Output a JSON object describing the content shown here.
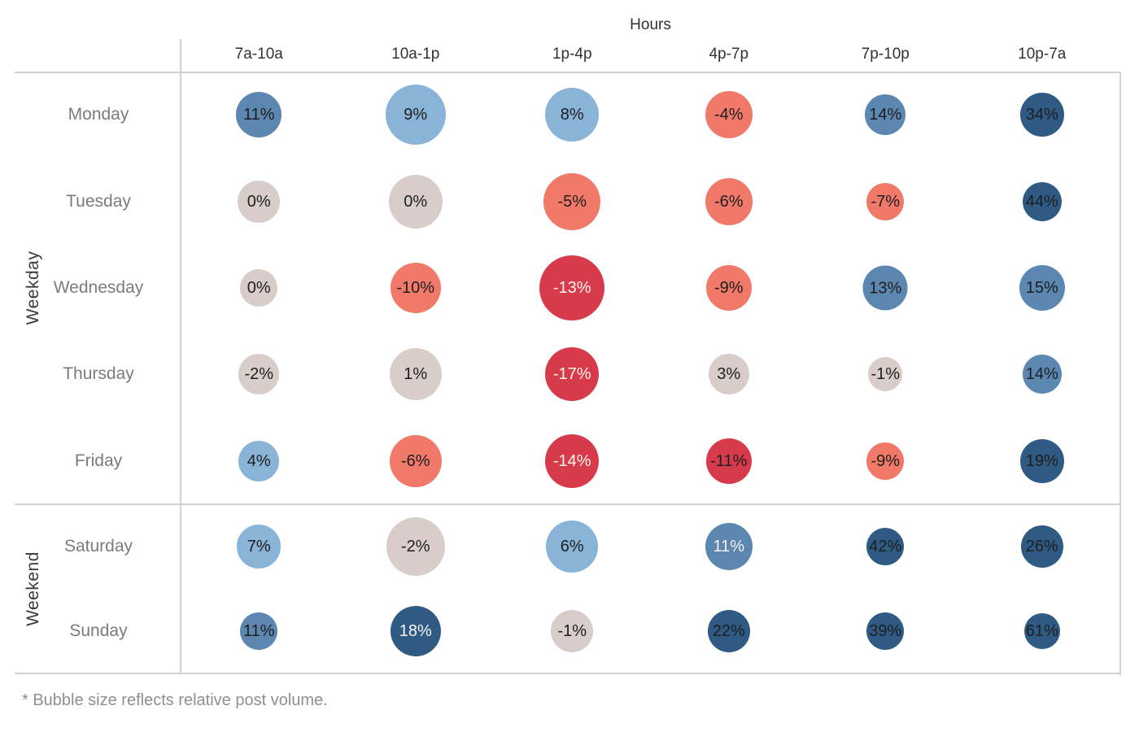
{
  "footnote": "* Bubble size reflects relative post volume.",
  "colors": {
    "navy": "#2e5a84",
    "medium_blue": "#5b87b0",
    "light_blue": "#89b4d8",
    "neutral_gray": "#d8cdc9",
    "salmon": "#f0796a",
    "strong_red": "#d73a4b",
    "label_dark": "#1e1e1e",
    "label_white": "#fbf5ef",
    "axis_line": "#d2d2d2",
    "header_text": "#323232",
    "day_text": "#7b7b7b",
    "footnote_text": "#8f8f8f"
  },
  "chart_data": {
    "type": "heatmap",
    "title": "Hours",
    "xlabel": "Hours",
    "ylabel": "Weekday / Weekend",
    "note": "Bubble matrix: value = % shown in bubble, size = relative post volume (px diameter), color = named key in colors map, text = bubble label color",
    "columns": [
      "7a-10a",
      "10a-1p",
      "1p-4p",
      "4p-7p",
      "7p-10p",
      "10p-7a"
    ],
    "row_groups": [
      {
        "label": "Weekday",
        "rows": [
          {
            "day": "Monday",
            "cells": [
              {
                "label": "11%",
                "value": 11,
                "size": 56,
                "color": "medium_blue",
                "text": "dark"
              },
              {
                "label": "9%",
                "value": 9,
                "size": 74,
                "color": "light_blue",
                "text": "dark"
              },
              {
                "label": "8%",
                "value": 8,
                "size": 66,
                "color": "light_blue",
                "text": "dark"
              },
              {
                "label": "-4%",
                "value": -4,
                "size": 58,
                "color": "salmon",
                "text": "dark"
              },
              {
                "label": "14%",
                "value": 14,
                "size": 50,
                "color": "medium_blue",
                "text": "dark"
              },
              {
                "label": "34%",
                "value": 34,
                "size": 54,
                "color": "navy",
                "text": "dark"
              }
            ]
          },
          {
            "day": "Tuesday",
            "cells": [
              {
                "label": "0%",
                "value": 0,
                "size": 52,
                "color": "neutral_gray",
                "text": "dark"
              },
              {
                "label": "0%",
                "value": 0,
                "size": 66,
                "color": "neutral_gray",
                "text": "dark"
              },
              {
                "label": "-5%",
                "value": -5,
                "size": 70,
                "color": "salmon",
                "text": "dark"
              },
              {
                "label": "-6%",
                "value": -6,
                "size": 58,
                "color": "salmon",
                "text": "dark"
              },
              {
                "label": "-7%",
                "value": -7,
                "size": 46,
                "color": "salmon",
                "text": "dark"
              },
              {
                "label": "44%",
                "value": 44,
                "size": 48,
                "color": "navy",
                "text": "dark"
              }
            ]
          },
          {
            "day": "Wednesday",
            "cells": [
              {
                "label": "0%",
                "value": 0,
                "size": 46,
                "color": "neutral_gray",
                "text": "dark"
              },
              {
                "label": "-10%",
                "value": -10,
                "size": 62,
                "color": "salmon",
                "text": "dark"
              },
              {
                "label": "-13%",
                "value": -13,
                "size": 80,
                "color": "strong_red",
                "text": "white"
              },
              {
                "label": "-9%",
                "value": -9,
                "size": 56,
                "color": "salmon",
                "text": "dark"
              },
              {
                "label": "13%",
                "value": 13,
                "size": 55,
                "color": "medium_blue",
                "text": "dark"
              },
              {
                "label": "15%",
                "value": 15,
                "size": 56,
                "color": "medium_blue",
                "text": "dark"
              }
            ]
          },
          {
            "day": "Thursday",
            "cells": [
              {
                "label": "-2%",
                "value": -2,
                "size": 50,
                "color": "neutral_gray",
                "text": "dark"
              },
              {
                "label": "1%",
                "value": 1,
                "size": 64,
                "color": "neutral_gray",
                "text": "dark"
              },
              {
                "label": "-17%",
                "value": -17,
                "size": 66,
                "color": "strong_red",
                "text": "white"
              },
              {
                "label": "3%",
                "value": 3,
                "size": 50,
                "color": "neutral_gray",
                "text": "dark"
              },
              {
                "label": "-1%",
                "value": -1,
                "size": 42,
                "color": "neutral_gray",
                "text": "dark"
              },
              {
                "label": "14%",
                "value": 14,
                "size": 48,
                "color": "medium_blue",
                "text": "dark"
              }
            ]
          },
          {
            "day": "Friday",
            "cells": [
              {
                "label": "4%",
                "value": 4,
                "size": 50,
                "color": "light_blue",
                "text": "dark"
              },
              {
                "label": "-6%",
                "value": -6,
                "size": 64,
                "color": "salmon",
                "text": "dark"
              },
              {
                "label": "-14%",
                "value": -14,
                "size": 66,
                "color": "strong_red",
                "text": "white"
              },
              {
                "label": "-11%",
                "value": -11,
                "size": 56,
                "color": "strong_red",
                "text": "dark"
              },
              {
                "label": "-9%",
                "value": -9,
                "size": 46,
                "color": "salmon",
                "text": "dark"
              },
              {
                "label": "19%",
                "value": 19,
                "size": 54,
                "color": "navy",
                "text": "dark"
              }
            ]
          }
        ]
      },
      {
        "label": "Weekend",
        "rows": [
          {
            "day": "Saturday",
            "cells": [
              {
                "label": "7%",
                "value": 7,
                "size": 54,
                "color": "light_blue",
                "text": "dark"
              },
              {
                "label": "-2%",
                "value": -2,
                "size": 72,
                "color": "neutral_gray",
                "text": "dark"
              },
              {
                "label": "6%",
                "value": 6,
                "size": 64,
                "color": "light_blue",
                "text": "dark"
              },
              {
                "label": "11%",
                "value": 11,
                "size": 58,
                "color": "medium_blue",
                "text": "white"
              },
              {
                "label": "42%",
                "value": 42,
                "size": 46,
                "color": "navy",
                "text": "dark"
              },
              {
                "label": "26%",
                "value": 26,
                "size": 52,
                "color": "navy",
                "text": "dark"
              }
            ]
          },
          {
            "day": "Sunday",
            "cells": [
              {
                "label": "11%",
                "value": 11,
                "size": 46,
                "color": "medium_blue",
                "text": "dark"
              },
              {
                "label": "18%",
                "value": 18,
                "size": 62,
                "color": "navy",
                "text": "white"
              },
              {
                "label": "-1%",
                "value": -1,
                "size": 52,
                "color": "neutral_gray",
                "text": "dark"
              },
              {
                "label": "22%",
                "value": 22,
                "size": 52,
                "color": "navy",
                "text": "dark"
              },
              {
                "label": "39%",
                "value": 39,
                "size": 46,
                "color": "navy",
                "text": "dark"
              },
              {
                "label": "61%",
                "value": 61,
                "size": 44,
                "color": "navy",
                "text": "dark"
              }
            ]
          }
        ]
      }
    ],
    "layout_hints": {
      "legend": "none",
      "grid": "off",
      "column_axis_position": "top",
      "row_group_axis_position": "left"
    }
  }
}
